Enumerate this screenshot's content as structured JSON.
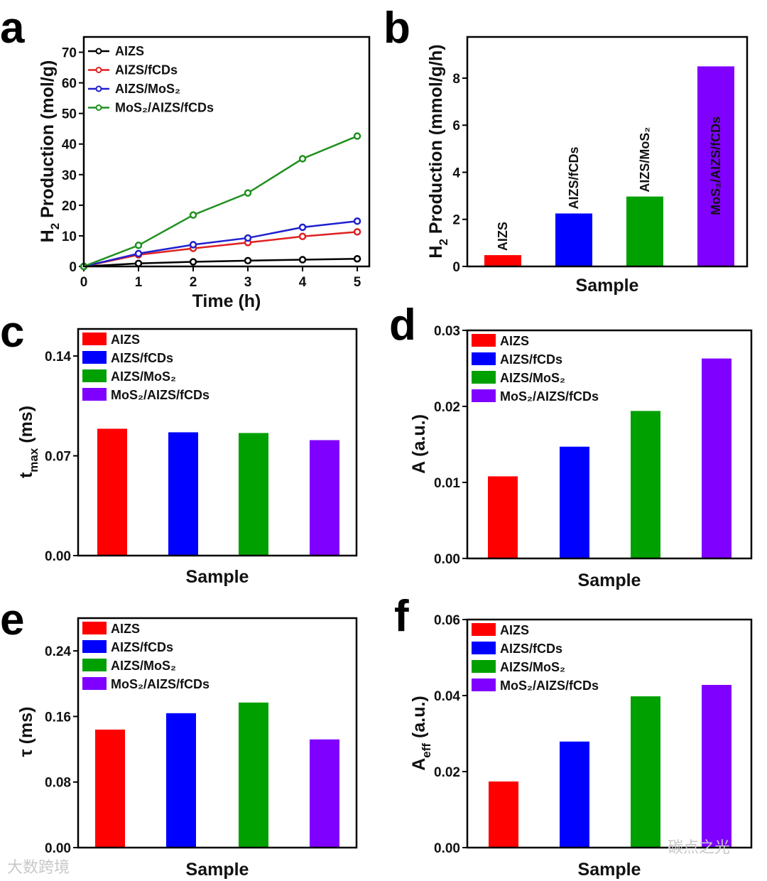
{
  "colors": {
    "AIZS": "#ff0000",
    "AIZS/fCDs": "#0000ff",
    "AIZS/MoS2": "#00a000",
    "MoS2/AIZS/fCDs": "#8000ff",
    "line_AIZS": "#000000",
    "line_fCDs": "#e02020",
    "line_MoS2": "#2020d0",
    "line_all": "#209020"
  },
  "watermarks": {
    "left": "大数跨境",
    "right": "碳点之光"
  },
  "chart_data": [
    {
      "panel": "a",
      "type": "line",
      "title": "",
      "xlabel": "Time (h)",
      "ylabel": [
        "H",
        "2",
        " Production (mol/g)"
      ],
      "x": [
        0,
        1,
        2,
        3,
        4,
        5
      ],
      "xlim": [
        0,
        5.22
      ],
      "ylim": [
        0,
        75
      ],
      "xticks": [
        0,
        1,
        2,
        3,
        4,
        5
      ],
      "yticks": [
        0,
        10,
        20,
        30,
        40,
        50,
        60,
        70
      ],
      "legend": "top-left",
      "series": [
        {
          "name": "AIZS",
          "color": "#000000",
          "values": [
            0,
            1.0,
            1.5,
            1.9,
            2.2,
            2.5
          ]
        },
        {
          "name": "AIZS/fCDs",
          "color": "#e02020",
          "values": [
            0,
            3.8,
            5.9,
            7.8,
            9.8,
            11.3
          ]
        },
        {
          "name": "AIZS/MoS₂",
          "color": "#2020d0",
          "values": [
            0,
            4.2,
            7.1,
            9.3,
            12.8,
            14.8
          ]
        },
        {
          "name": "MoS₂/AIZS/fCDs",
          "color": "#209020",
          "values": [
            0,
            6.9,
            16.8,
            24.0,
            35.2,
            42.6
          ]
        }
      ]
    },
    {
      "panel": "b",
      "type": "bar",
      "title": "",
      "xlabel": "Sample",
      "ylabel": [
        "H",
        "2",
        " Production (mmol/g/h)"
      ],
      "categories": [
        "AIZS",
        "AIZS/fCDs",
        "AIZS/MoS₂",
        "MoS₂/AIZS/fCDs"
      ],
      "values": [
        0.48,
        2.25,
        2.97,
        8.5
      ],
      "ylim": [
        0,
        9.75
      ],
      "yticks": [
        "0",
        "2",
        "4",
        "6",
        "8"
      ],
      "legend": "none",
      "labels": "rotated-on-bars"
    },
    {
      "panel": "c",
      "type": "bar",
      "title": "",
      "xlabel": "Sample",
      "ylabel": [
        "t",
        "max",
        " (ms)"
      ],
      "categories": [
        "AIZS",
        "AIZS/fCDs",
        "AIZS/MoS₂",
        "MoS₂/AIZS/fCDs"
      ],
      "values": [
        0.089,
        0.0865,
        0.086,
        0.081
      ],
      "ylim": [
        0,
        0.159
      ],
      "yticks": [
        "0.00",
        "0.07",
        "0.14"
      ],
      "legend": "top-left"
    },
    {
      "panel": "d",
      "type": "bar",
      "title": "",
      "xlabel": "Sample",
      "ylabel": [
        "A",
        "",
        " (a.u.)"
      ],
      "categories": [
        "AIZS",
        "AIZS/fCDs",
        "AIZS/MoS₂",
        "MoS₂/AIZS/fCDs"
      ],
      "values": [
        0.0108,
        0.0147,
        0.0194,
        0.0263
      ],
      "ylim": [
        0,
        0.03
      ],
      "yticks": [
        "0.00",
        "0.01",
        "0.02",
        "0.03"
      ],
      "legend": "top-left"
    },
    {
      "panel": "e",
      "type": "bar",
      "title": "",
      "xlabel": "Sample",
      "ylabel": [
        "τ",
        "",
        " (ms)"
      ],
      "categories": [
        "AIZS",
        "AIZS/fCDs",
        "AIZS/MoS₂",
        "MoS₂/AIZS/fCDs"
      ],
      "values": [
        0.144,
        0.164,
        0.177,
        0.132
      ],
      "ylim": [
        0,
        0.28
      ],
      "yticks": [
        "0.00",
        "0.08",
        "0.16",
        "0.24"
      ],
      "legend": "top-left"
    },
    {
      "panel": "f",
      "type": "bar",
      "title": "",
      "xlabel": "Sample",
      "ylabel": [
        "A",
        "eff",
        " (a.u.)"
      ],
      "categories": [
        "AIZS",
        "AIZS/fCDs",
        "AIZS/MoS₂",
        "MoS₂/AIZS/fCDs"
      ],
      "values": [
        0.0174,
        0.0279,
        0.0398,
        0.0428
      ],
      "ylim": [
        0,
        0.06
      ],
      "yticks": [
        "0.00",
        "0.02",
        "0.04",
        "0.06"
      ],
      "legend": "top-left"
    }
  ]
}
